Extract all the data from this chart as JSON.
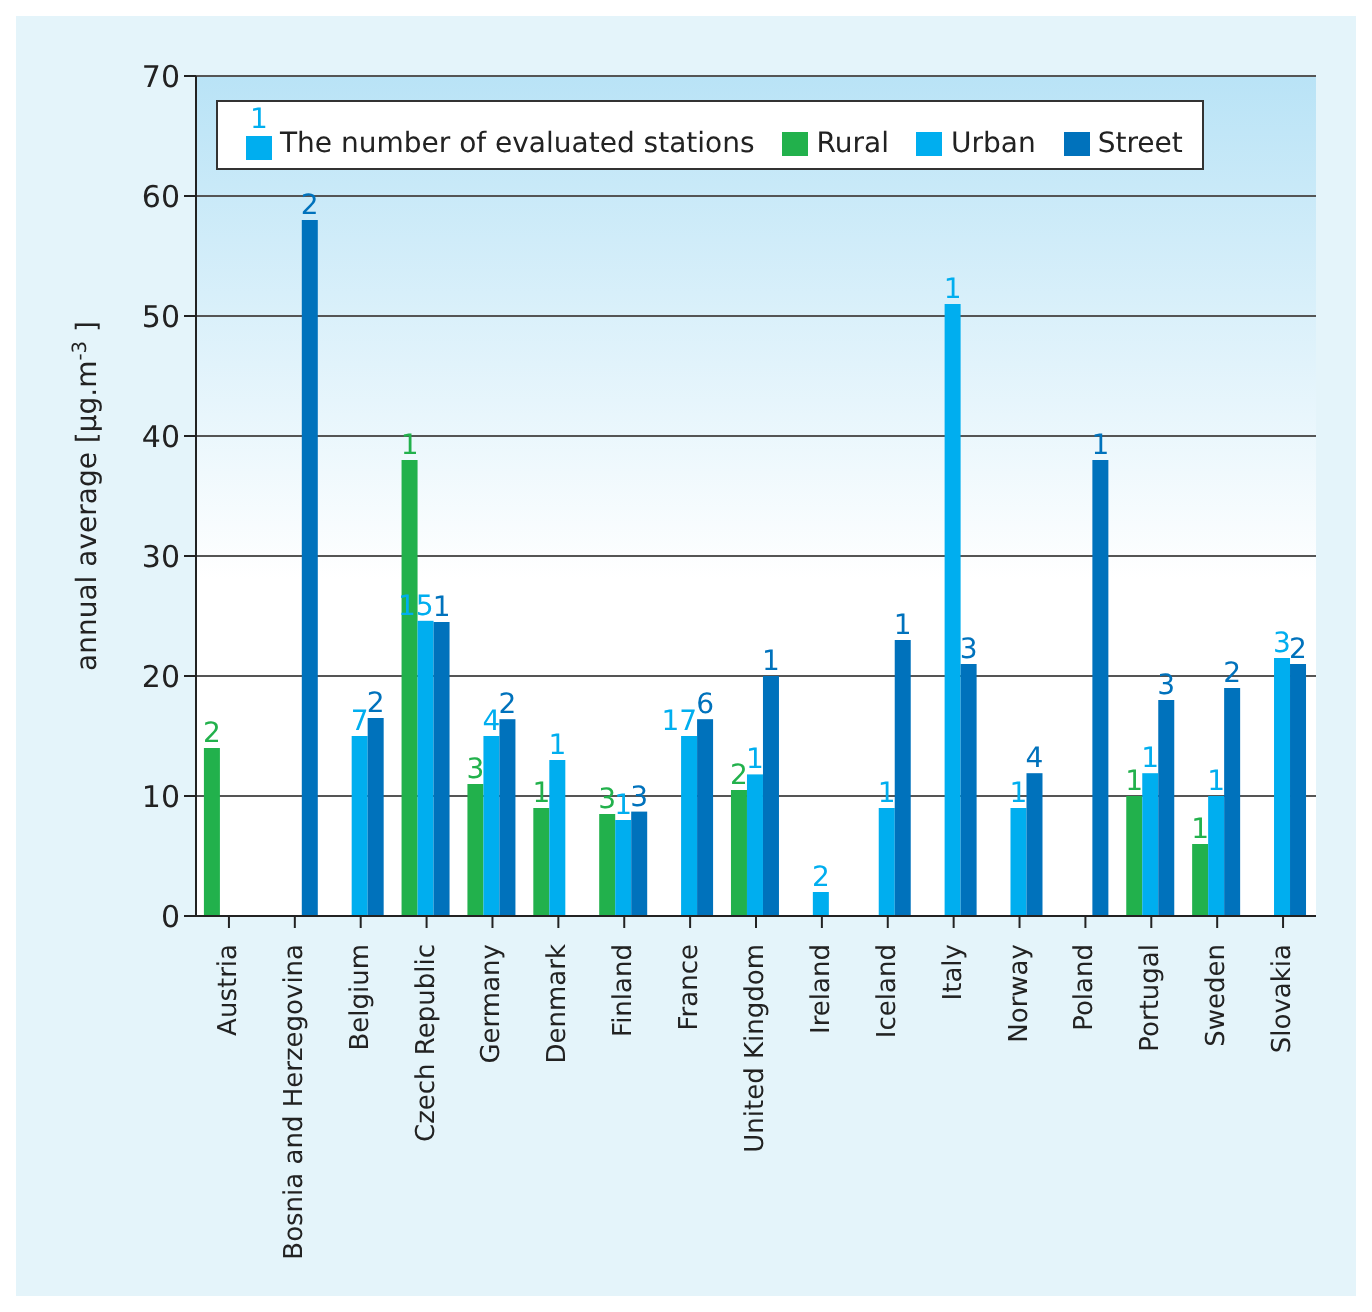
{
  "chart_data": {
    "type": "bar",
    "ylabel": "annual average [µg.m$^{-3}$]",
    "categories": [
      "Austria",
      "Bosnia and Herzegovina",
      "Belgium",
      "Czech Republic",
      "Germany",
      "Denmark",
      "Finland",
      "France",
      "United Kingdom",
      "Ireland",
      "Iceland",
      "Italy",
      "Norway",
      "Poland",
      "Portugal",
      "Sweden",
      "Slovakia"
    ],
    "series": [
      {
        "name": "Rural",
        "color": "#22b14c",
        "values": [
          14,
          null,
          null,
          38,
          11,
          9,
          8.5,
          null,
          10.5,
          null,
          null,
          null,
          null,
          null,
          10,
          6,
          null
        ]
      },
      {
        "name": "Urban",
        "color": "#00aeef",
        "values": [
          null,
          null,
          15,
          24.6,
          15,
          13,
          8,
          15,
          11.8,
          2,
          9,
          51,
          9,
          null,
          11.9,
          10,
          21.5
        ]
      },
      {
        "name": "Street",
        "color": "#0072bc",
        "values": [
          null,
          58,
          16.5,
          24.5,
          16.4,
          null,
          8.7,
          16.4,
          20,
          null,
          23,
          21,
          11.9,
          38,
          18,
          19,
          21
        ]
      }
    ],
    "annotations": [
      "1",
      "The number of evaluated stations",
      {
        "text": "2",
        "x": "Austria",
        "y": 14
      },
      {
        "text": "2",
        "x": "Bosnia and Herzegovina",
        "y": 58
      },
      {
        "text": "7",
        "x": "Belgium",
        "y": 15
      },
      {
        "text": "2",
        "x": "Belgium",
        "y": 16.5
      },
      {
        "text": "1",
        "x": "Czech Republic",
        "y": 38
      },
      {
        "text": "15",
        "x": "Czech Republic",
        "y": 24.6
      },
      {
        "text": "1",
        "x": "Czech Republic",
        "y": 24.5
      },
      {
        "text": "3",
        "x": "Germany",
        "y": 11
      },
      {
        "text": "4",
        "x": "Germany",
        "y": 15
      },
      {
        "text": "2",
        "x": "Germany",
        "y": 16.4
      },
      {
        "text": "1",
        "x": "Denmark",
        "y": 9
      },
      {
        "text": "1",
        "x": "Denmark",
        "y": 13
      },
      {
        "text": "3",
        "x": "Finland",
        "y": 8.5
      },
      {
        "text": "1",
        "x": "Finland",
        "y": 8
      },
      {
        "text": "3",
        "x": "Finland",
        "y": 8.7
      },
      {
        "text": "17",
        "x": "France",
        "y": 15
      },
      {
        "text": "6",
        "x": "France",
        "y": 16.4
      },
      {
        "text": "2",
        "x": "United Kingdom",
        "y": 10.5
      },
      {
        "text": "1",
        "x": "United Kingdom",
        "y": 11.8
      },
      {
        "text": "1",
        "x": "United Kingdom",
        "y": 20
      },
      {
        "text": "2",
        "x": "Ireland",
        "y": 2
      },
      {
        "text": "1",
        "x": "Iceland",
        "y": 9
      },
      {
        "text": "1",
        "x": "Iceland",
        "y": 23
      },
      {
        "text": "1",
        "x": "Italy",
        "y": 51
      },
      {
        "text": "3",
        "x": "Italy",
        "y": 21
      },
      {
        "text": "1",
        "x": "Norway",
        "y": 9
      },
      {
        "text": "4",
        "x": "Norway",
        "y": 11.9
      },
      {
        "text": "1",
        "x": "Poland",
        "y": 38
      },
      {
        "text": "1",
        "x": "Portugal",
        "y": 10
      },
      {
        "text": "1",
        "x": "Portugal",
        "y": 11.9
      },
      {
        "text": "3",
        "x": "Portugal",
        "y": 18
      },
      {
        "text": "1",
        "x": "Sweden",
        "y": 6
      },
      {
        "text": "1",
        "x": "Sweden",
        "y": 10
      },
      {
        "text": "2",
        "x": "Sweden",
        "y": 19
      },
      {
        "text": "3",
        "x": "Slovakia",
        "y": 21.5
      },
      {
        "text": "2",
        "x": "Slovakia",
        "y": 21
      }
    ],
    "ylim": [
      0,
      70
    ],
    "yticks": [
      0,
      10,
      20,
      30,
      40,
      50,
      60,
      70
    ],
    "grid": "y",
    "legend": "top"
  }
}
